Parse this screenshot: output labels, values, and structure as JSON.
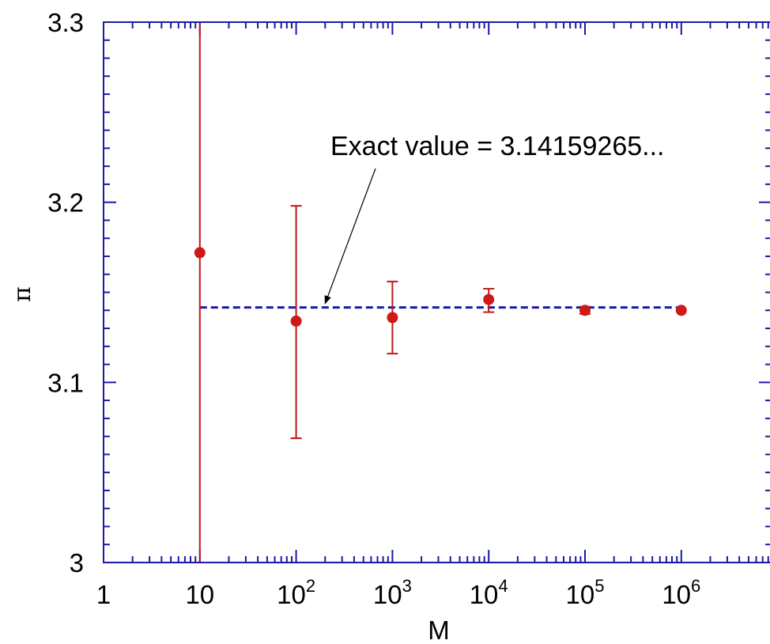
{
  "chart_data": {
    "type": "scatter",
    "xlabel": "M",
    "ylabel": "π",
    "x_scale": "log",
    "xlim": [
      1,
      10000000
    ],
    "ylim": [
      3.0,
      3.3
    ],
    "x_tick_labels": [
      {
        "base": "1",
        "exp": ""
      },
      {
        "base": "10",
        "exp": ""
      },
      {
        "base": "10",
        "exp": "2"
      },
      {
        "base": "10",
        "exp": "3"
      },
      {
        "base": "10",
        "exp": "4"
      },
      {
        "base": "10",
        "exp": "5"
      },
      {
        "base": "10",
        "exp": "6"
      }
    ],
    "y_tick_labels": [
      "3",
      "3.1",
      "3.2",
      "3.3"
    ],
    "y_tick_values": [
      3.0,
      3.1,
      3.2,
      3.3
    ],
    "series": [
      {
        "points": [
          {
            "x": 10,
            "y": 3.172,
            "err_low": 3.0,
            "err_high": 3.3
          },
          {
            "x": 100,
            "y": 3.134,
            "err_low": 3.069,
            "err_high": 3.198
          },
          {
            "x": 1000,
            "y": 3.136,
            "err_low": 3.116,
            "err_high": 3.156
          },
          {
            "x": 10000,
            "y": 3.146,
            "err_low": 3.139,
            "err_high": 3.152
          },
          {
            "x": 100000,
            "y": 3.14,
            "err_low": 3.138,
            "err_high": 3.142
          },
          {
            "x": 1000000,
            "y": 3.14,
            "err_low": 3.1395,
            "err_high": 3.1405
          }
        ]
      }
    ],
    "reference_line": {
      "y": 3.14159265,
      "x_from": 10,
      "x_to": 1000000
    },
    "annotation": {
      "text": "Exact value = 3.14159265...",
      "arrow_to": {
        "x": 200,
        "y": 3.14159265
      }
    },
    "grid": false,
    "colors": {
      "axis": "#1a1aa6",
      "points": "#d01818",
      "errorbars": "#c01818",
      "refline": "#1a1aa6"
    }
  }
}
